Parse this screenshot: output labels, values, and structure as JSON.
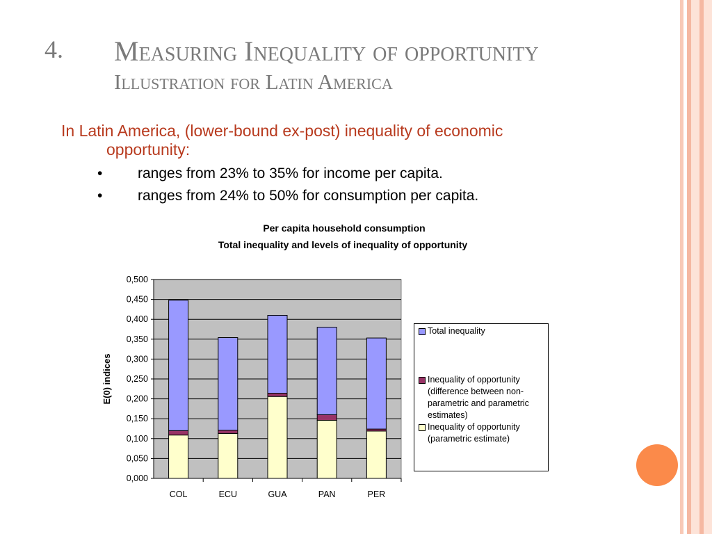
{
  "slide": {
    "number": "4.",
    "title": "Measuring Inequality of opportunity",
    "subtitle": "Illustration for Latin America",
    "intro_line1": "In Latin America, (lower-bound ex-post) inequality of economic",
    "intro_line2": "opportunity:",
    "bullets": [
      {
        "marker": "•",
        "text": "ranges from 23% to 35% for income per capita."
      },
      {
        "marker": "•",
        "text": "ranges from 24% to 50% for consumption per capita."
      }
    ]
  },
  "colors": {
    "total": "#9999ff",
    "opportunity_diff": "#993366",
    "opportunity_param": "#ffffcc",
    "plot_bg": "#c0c0c0",
    "stripe_dark": "#f5b8a2",
    "stripe_light": "#fde3d8",
    "accent_circle": "#fb8a4a",
    "title_gray": "#7a7a7a",
    "intro_red": "#b83a1e"
  },
  "chart_data": {
    "type": "bar",
    "stacked": true,
    "title": "Per capita household consumption",
    "subtitle": "Total inequality and levels of inequality of opportunity",
    "xlabel": "",
    "ylabel": "E(0) indices",
    "ylim": [
      0,
      0.5
    ],
    "yticks": [
      "0,000",
      "0,050",
      "0,100",
      "0,150",
      "0,200",
      "0,250",
      "0,300",
      "0,350",
      "0,400",
      "0,450",
      "0,500"
    ],
    "categories": [
      "COL",
      "ECU",
      "GUA",
      "PAN",
      "PER"
    ],
    "series": [
      {
        "name": "Inequality of opportunity (parametric estimate)",
        "values": [
          0.109,
          0.113,
          0.206,
          0.146,
          0.119
        ]
      },
      {
        "name": "Inequality of opportunity (difference between non-parametric and parametric estimates)",
        "values": [
          0.011,
          0.008,
          0.008,
          0.014,
          0.005
        ]
      },
      {
        "name": "Total inequality",
        "values": [
          0.328,
          0.233,
          0.196,
          0.22,
          0.229
        ]
      }
    ],
    "legend": {
      "position": "right",
      "items": [
        {
          "label": "Total inequality",
          "color": "#9999ff"
        },
        {
          "label": "Inequality of opportunity (difference between non-parametric and parametric estimates)",
          "color": "#993366"
        },
        {
          "label": "Inequality of opportunity (parametric estimate)",
          "color": "#ffffcc"
        }
      ]
    },
    "grid": true
  }
}
